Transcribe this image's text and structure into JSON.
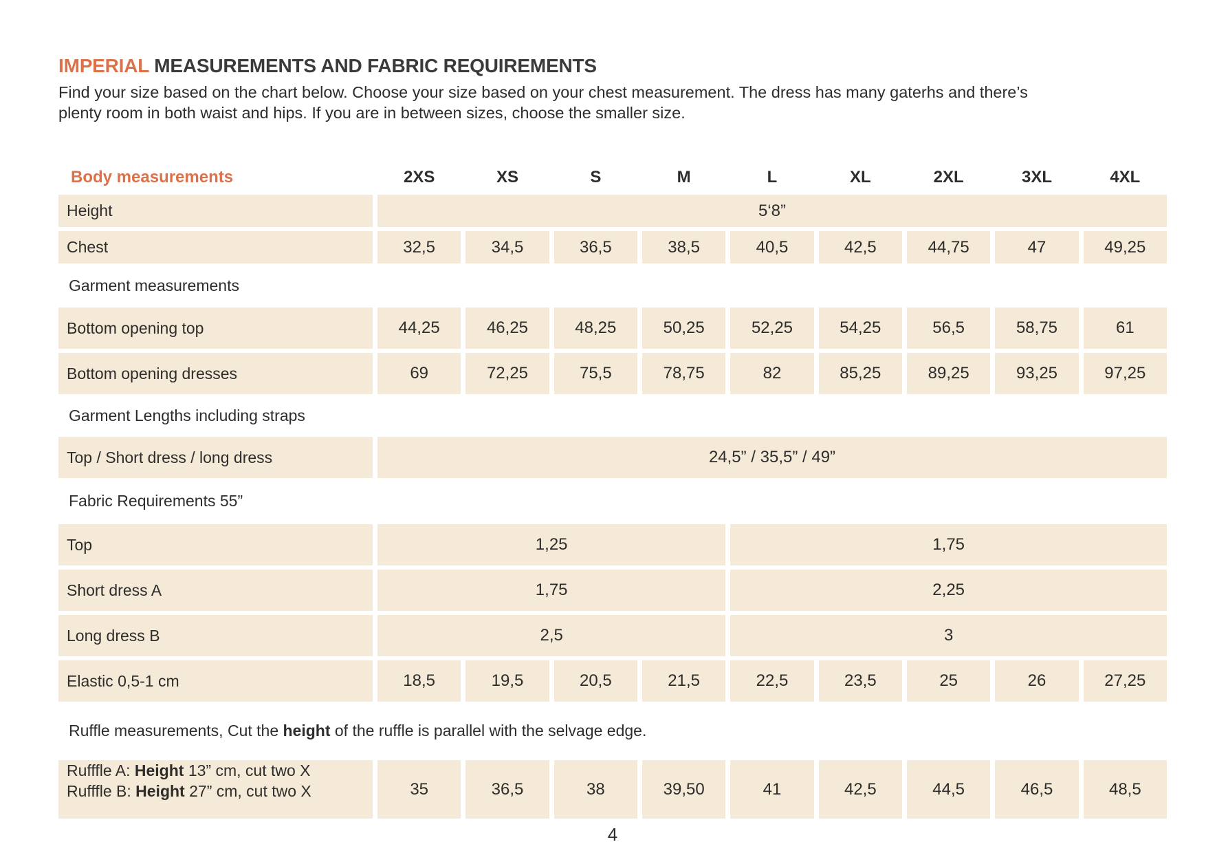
{
  "colors": {
    "accent": "#DD7149",
    "row_bg": "#F4EAD7",
    "text": "#2E2D2C"
  },
  "header": {
    "title_accent": "IMPERIAL",
    "title_rest": "MEASUREMENTS AND FABRIC REQUIREMENTS",
    "intro": "Find your size based on the chart below. Choose your size based on your chest measurement. The dress has many gaterhs and there’s plenty room in both waist and hips. If you are in between sizes, choose the smaller size."
  },
  "table": {
    "columns_label": "Body measurements",
    "sizes": [
      "2XS",
      "XS",
      "S",
      "M",
      "L",
      "XL",
      "2XL",
      "3XL",
      "4XL"
    ],
    "height": {
      "label": "Height",
      "value": "5‘8”"
    },
    "chest": {
      "label": "Chest",
      "values": [
        "32,5",
        "34,5",
        "36,5",
        "38,5",
        "40,5",
        "42,5",
        "44,75",
        "47",
        "49,25"
      ]
    },
    "garment_section": "Garment measurements",
    "bottom_opening_top": {
      "label": "Bottom opening top",
      "values": [
        "44,25",
        "46,25",
        "48,25",
        "50,25",
        "52,25",
        "54,25",
        "56,5",
        "58,75",
        "61"
      ]
    },
    "bottom_opening_dresses": {
      "label": "Bottom opening dresses",
      "values": [
        "69",
        "72,25",
        "75,5",
        "78,75",
        "82",
        "85,25",
        "89,25",
        "93,25",
        "97,25"
      ]
    },
    "lengths_section": "Garment Lengths including straps",
    "lengths": {
      "label": "Top / Short dress / long dress",
      "value": "24,5” / 35,5” / 49”"
    },
    "fabric_section": "Fabric Requirements 55”",
    "fabric_top": {
      "label": "Top",
      "small_sizes": "1,25",
      "large_sizes": "1,75"
    },
    "fabric_short_dress": {
      "label": "Short dress A",
      "small_sizes": "1,75",
      "large_sizes": "2,25"
    },
    "fabric_long_dress": {
      "label": "Long dress B",
      "small_sizes": "2,5",
      "large_sizes": "3"
    },
    "elastic": {
      "label": "Elastic 0,5-1 cm",
      "values": [
        "18,5",
        "19,5",
        "20,5",
        "21,5",
        "22,5",
        "23,5",
        "25",
        "26",
        "27,25"
      ]
    },
    "ruffle_note": {
      "prefix": "Ruffle measurements, Cut the ",
      "bold": "height",
      "suffix": " of the ruffle is parallel with the selvage edge."
    },
    "ruffle": {
      "line_a_prefix": "Rufffle A: ",
      "line_a_bold": "Height",
      "line_a_suffix": " 13” cm, cut two X",
      "line_b_prefix": "Rufffle B: ",
      "line_b_bold": "Height",
      "line_b_suffix": " 27” cm, cut two X",
      "values": [
        "35",
        "36,5",
        "38",
        "39,50",
        "41",
        "42,5",
        "44,5",
        "46,5",
        "48,5"
      ]
    }
  },
  "footer": {
    "page_number": "4"
  }
}
